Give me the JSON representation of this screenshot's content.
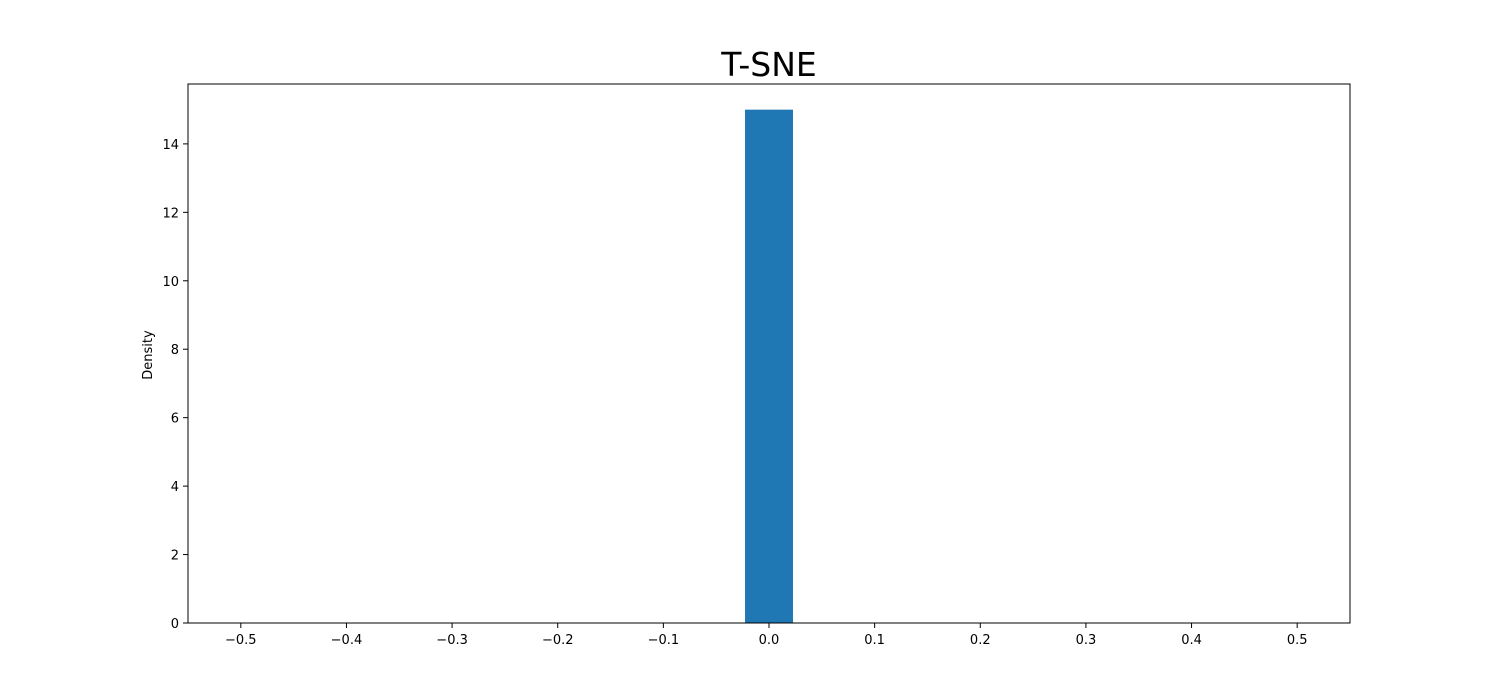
{
  "chart_data": {
    "type": "bar",
    "title": "T-SNE",
    "xlabel": "",
    "ylabel": "Density",
    "xlim": [
      -0.55,
      0.55
    ],
    "ylim": [
      0,
      15.75
    ],
    "grid": false,
    "bars": [
      {
        "x_start": -0.0227,
        "x_end": 0.0227,
        "value": 15.0
      }
    ],
    "bar_color": "#1f77b4",
    "xticks": [
      -0.5,
      -0.4,
      -0.3,
      -0.2,
      -0.1,
      0.0,
      0.1,
      0.2,
      0.3,
      0.4,
      0.5
    ],
    "xtick_labels": [
      "−0.5",
      "−0.4",
      "−0.3",
      "−0.2",
      "−0.1",
      "0.0",
      "0.1",
      "0.2",
      "0.3",
      "0.4",
      "0.5"
    ],
    "yticks": [
      0,
      2,
      4,
      6,
      8,
      10,
      12,
      14
    ],
    "ytick_labels": [
      "0",
      "2",
      "4",
      "6",
      "8",
      "10",
      "12",
      "14"
    ]
  }
}
